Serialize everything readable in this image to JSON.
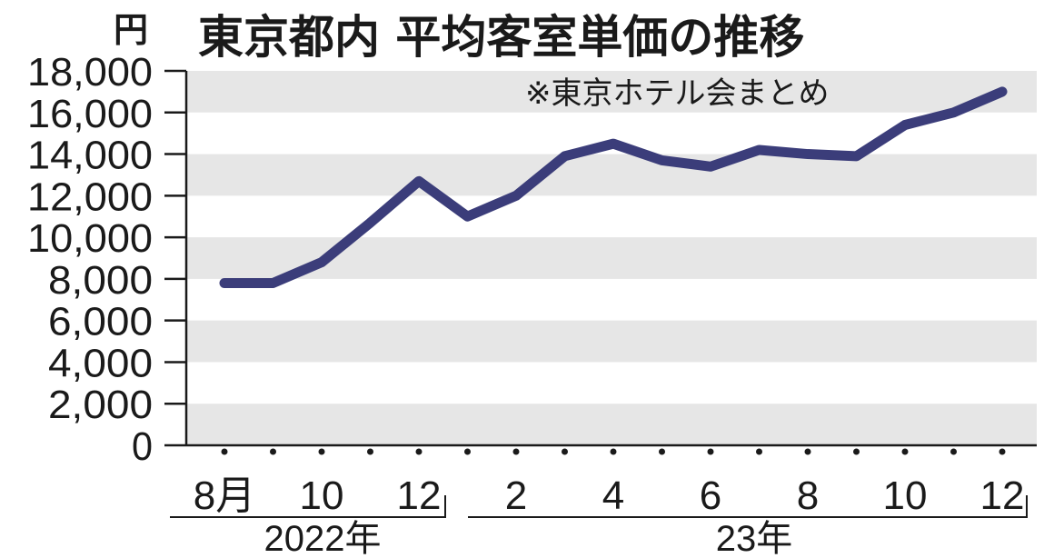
{
  "chart_data": {
    "type": "line",
    "title": "東京都内 平均客室単価の推移",
    "unit_label": "円",
    "note": "※東京ホテル会まとめ",
    "ylim": [
      0,
      18000
    ],
    "y_ticks": [
      "18,000",
      "16,000",
      "14,000",
      "12,000",
      "10,000",
      "8,000",
      "6,000",
      "4,000",
      "2,000",
      "0"
    ],
    "x_tick_labels": [
      "8月",
      "10",
      "12",
      "2",
      "4",
      "6",
      "8",
      "10",
      "12"
    ],
    "year_labels": [
      "2022年",
      "23年"
    ],
    "grid": "horizontal bands",
    "line_color": "#3b3d7a",
    "band_color": "#e6e6e6",
    "series": [
      {
        "x": [
          "2022-08",
          "2022-09",
          "2022-10",
          "2022-11",
          "2022-12",
          "2023-01",
          "2023-02",
          "2023-03",
          "2023-04",
          "2023-05",
          "2023-06",
          "2023-07",
          "2023-08",
          "2023-09",
          "2023-10",
          "2023-11",
          "2023-12"
        ],
        "values": [
          7800,
          7800,
          8800,
          10700,
          12700,
          11000,
          12000,
          13900,
          14500,
          13700,
          13400,
          14200,
          14000,
          13900,
          15400,
          16000,
          17000
        ]
      }
    ]
  }
}
